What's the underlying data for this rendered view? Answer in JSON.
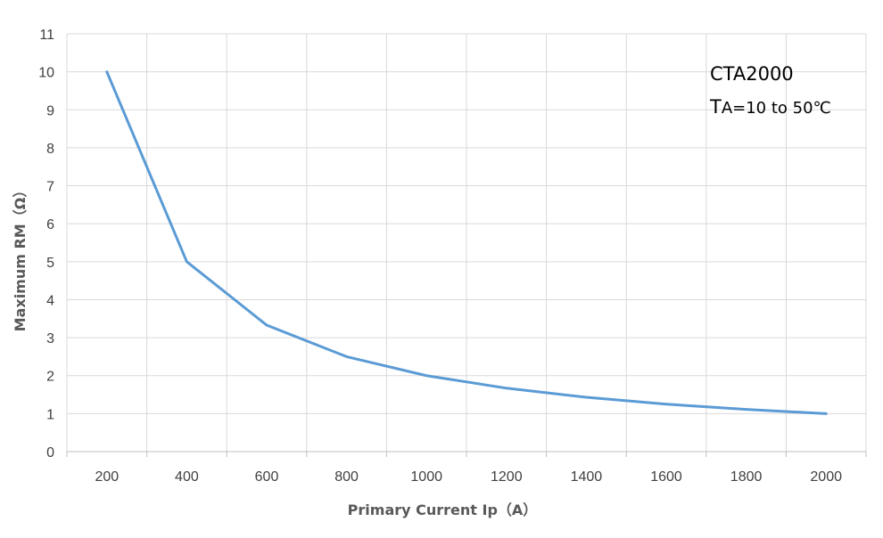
{
  "chart_data": {
    "type": "line",
    "x": [
      200,
      400,
      600,
      800,
      1000,
      1200,
      1400,
      1600,
      1800,
      2000
    ],
    "series": [
      {
        "values": [
          10,
          5,
          3.33,
          2.5,
          2,
          1.67,
          1.43,
          1.25,
          1.11,
          1
        ],
        "color": "#5b9bd5"
      }
    ],
    "x_categories": [
      "200",
      "400",
      "600",
      "800",
      "1000",
      "1200",
      "1400",
      "1600",
      "1800",
      "2000"
    ],
    "y_ticks": [
      "0",
      "1",
      "2",
      "3",
      "4",
      "5",
      "6",
      "7",
      "8",
      "9",
      "10",
      "11"
    ],
    "ylim": [
      0,
      11
    ],
    "xlabel": "Primary Current Ip（A）",
    "ylabel": "Maximum RM（Ω）",
    "grid": true,
    "annotation": {
      "title": "CTA2000",
      "sub_prefix": "T",
      "sub_text": "A=10 to 50℃"
    },
    "colors": {
      "grid": "#d9d9d9",
      "axis": "#bfbfbf"
    }
  }
}
